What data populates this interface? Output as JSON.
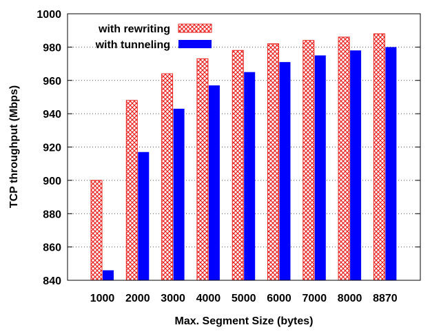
{
  "chart_data": {
    "type": "bar",
    "title": "",
    "xlabel": "Max. Segment Size (bytes)",
    "ylabel": "TCP throughput (Mbps)",
    "categories": [
      "1000",
      "2000",
      "3000",
      "4000",
      "5000",
      "6000",
      "7000",
      "8000",
      "8870"
    ],
    "ylim": [
      840,
      1000
    ],
    "yticks": [
      "840",
      "860",
      "880",
      "900",
      "920",
      "940",
      "960",
      "980",
      "1000"
    ],
    "grid": "horizontal dotted",
    "legend_position": "top-left",
    "series": [
      {
        "name": "with rewriting",
        "pattern": "crosshatch",
        "color": "#e8221f",
        "values": [
          900,
          948,
          964,
          973,
          978,
          982,
          984,
          986,
          988
        ]
      },
      {
        "name": "with tunneling",
        "pattern": "solid",
        "color": "#0000ff",
        "values": [
          846,
          917,
          943,
          957,
          965,
          971,
          975,
          978,
          980
        ]
      }
    ]
  }
}
